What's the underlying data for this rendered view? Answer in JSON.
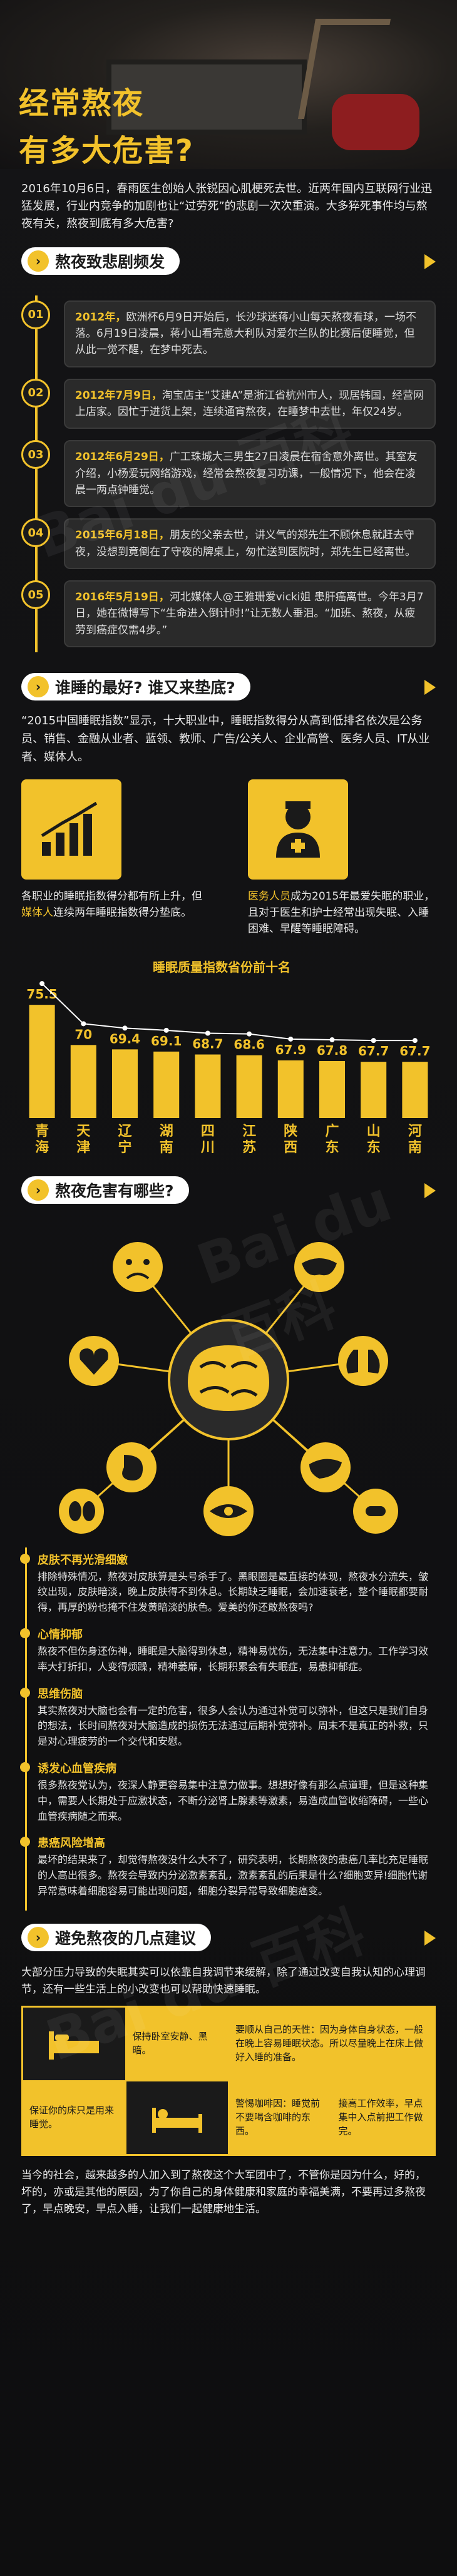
{
  "hero": {
    "title_line1": "经常熬夜",
    "title_line2": "有多大危害?"
  },
  "intro": "2016年10月6日，春雨医生创始人张锐因心肌梗死去世。近两年国内互联网行业迅猛发展，行业内竞争的加剧也让“过劳死”的悲剧一次次重演。大多猝死事件均与熬夜有关，熬夜到底有多大危害?",
  "section1": {
    "title": "熬夜致悲剧频发",
    "items": [
      {
        "num": "01",
        "year": "2012年，",
        "text": "欧洲杯6月9日开始后，长沙球迷蒋小山每天熬夜看球，一场不落。6月19日凌晨，蒋小山看完意大利队对爱尔兰队的比赛后便睡觉，但从此一觉不醒，在梦中死去。"
      },
      {
        "num": "02",
        "year": "2012年7月9日，",
        "text": "淘宝店主“艾建A”是浙江省杭州市人，现居韩国，经营网上店家。因忙于进货上架，连续通宵熬夜，在睡梦中去世，年仅24岁。"
      },
      {
        "num": "03",
        "year": "2012年6月29日，",
        "text": "广工珠城大三男生27日凌晨在宿舍意外离世。其室友介绍，小杨爱玩网络游戏，经常会熬夜复习功课，一般情况下，他会在凌晨一两点钟睡觉。"
      },
      {
        "num": "04",
        "year": "2015年6月18日，",
        "text": "朋友的父亲去世，讲义气的郑先生不顾休息就赶去守夜，没想到竟倒在了守夜的牌桌上，匆忙送到医院时，郑先生已经离世。"
      },
      {
        "num": "05",
        "year": "2016年5月19日，",
        "text": "河北媒体人@王雅珊爱vicki姐 患肝癌离世。今年3月7日，她在微博写下“生命进入倒计时!”让无数人垂泪。“加班、熬夜，从疲劳到癌症仅需4步。”"
      }
    ]
  },
  "section2": {
    "title": "谁睡的最好? 谁又来垫底?",
    "intro": "“2015中国睡眠指数”显示，十大职业中，睡眠指数得分从高到低排名依次是公务员、销售、金融从业者、蓝领、教师、广告/公关人、企业高管、医务人员、IT从业者、媒体人。",
    "left_pre": "各职业的睡眠指数得分都有所上升，但",
    "left_hl": "媒体人",
    "left_post": "连续两年睡眠指数得分垫底。",
    "right_hl": "医务人员",
    "right_post": "成为2015年最爱失眠的职业，且对于医生和护士经常出现失眠、入睡困难、早醒等睡眠障碍。",
    "left_icon": "rising-bar-chart-icon",
    "right_icon": "doctor-icon"
  },
  "chart_data": {
    "type": "bar",
    "title": "睡眠质量指数省份前十名",
    "categories": [
      "青海",
      "天津",
      "辽宁",
      "湖南",
      "四川",
      "江苏",
      "陕西",
      "广东",
      "山东",
      "河南"
    ],
    "values": [
      75.5,
      70,
      69.4,
      69.1,
      68.7,
      68.6,
      67.9,
      67.8,
      67.7,
      67.7
    ],
    "value_labels": [
      "75.5",
      "70",
      "69.4",
      "69.1",
      "68.7",
      "68.6",
      "67.9",
      "67.8",
      "67.7",
      "67.7"
    ],
    "ylim": [
      60,
      78
    ],
    "bar_color": "#f2c22b",
    "line_color": "#ffffff"
  },
  "section3": {
    "title": "熬夜危害有哪些?",
    "items": [
      {
        "h": "皮肤不再光滑细嫩",
        "b": "排除特殊情况，熬夜对皮肤算是头号杀手了。黑眼圈是最直接的体现，熬夜水分流失，皱纹出现，皮肤暗淡，晚上皮肤得不到休息。长期缺乏睡眠，会加速衰老，整个睡眠都要耐得，再厚的粉也掩不住发黄暗淡的肤色。爱美的你还敢熬夜吗?"
      },
      {
        "h": "心情抑郁",
        "b": "熬夜不但伤身还伤神，睡眠是大脑得到休息，精神易忧伤，无法集中注意力。工作学习效率大打折扣，人变得烦躁，精神萎靡，长期积累会有失眠症，易患抑郁症。"
      },
      {
        "h": "思维伤脑",
        "b": "其实熬夜对大脑也会有一定的危害，很多人会认为通过补觉可以弥补，但这只是我们自身的想法，长时间熬夜对大脑造成的损伤无法通过后期补觉弥补。周末不是真正的补救，只是对心理疲劳的一个交代和安慰。"
      },
      {
        "h": "诱发心血管疾病",
        "b": "很多熬夜党认为，夜深人静更容易集中注意力做事。想想好像有那么点道理，但是这种集中，需要人长期处于应激状态，不断分泌肾上腺素等激素，易造成血管收缩障碍，一些心血管疾病随之而来。"
      },
      {
        "h": "患癌风险增高",
        "b": "最坏的结果来了，却觉得熬夜没什么大不了，研究表明，长期熬夜的患癌几率比充足睡眠的人高出很多。熬夜会导致内分泌激素紊乱，激素紊乱的后果是什么?细胞变异!细胞代谢异常意味着细胞容易可能出现问题，细胞分裂异常导致细胞癌变。"
      }
    ],
    "hub_icons": [
      "brain-icon",
      "sad-face-icon",
      "mask-icon",
      "heart-icon",
      "lungs-icon",
      "stomach-icon",
      "liver-icon",
      "eye-icon",
      "kidney-icon"
    ]
  },
  "section4": {
    "title": "避免熬夜的几点建议",
    "intro": "大部分压力导致的失眠其实可以依靠自我调节来缓解，除了通过改变自我认知的心理调节，还有一些生活上的小改变也可以帮助快速睡眠。",
    "tips": [
      "保持卧室安静、黑暗。",
      "要顺从自己的天性：因为身体自身状态，一般在晚上容易睡眠状态。所以尽量晚上在床上做好入睡的准备。",
      "保证你的床只是用来睡觉。",
      "警惕咖啡因：睡觉前不要喝含咖啡的东西。",
      "接高工作效率，早点集中入点前把工作做完。"
    ]
  },
  "footer": "当今的社会，越来越多的人加入到了熬夜这个大军团中了，不管你是因为什么，好的，坏的，亦或是其他的原因，为了你自己的身体健康和家庭的幸福美满，不要再过多熬夜了，早点晚安，早点入睡，让我们一起健康地生活。",
  "watermark": "Bai du 百科"
}
